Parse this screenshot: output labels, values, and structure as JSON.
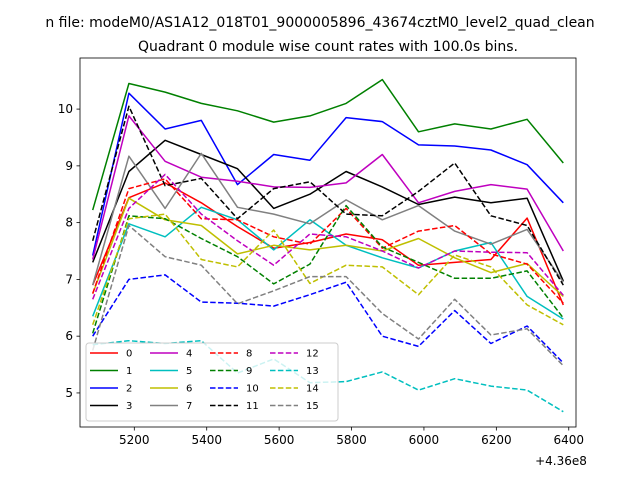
{
  "chart_data": {
    "type": "line",
    "suptitle": "n file: modeM0/AS1A12_018T01_9000005896_43674cztM0_level2_quad_clean",
    "title": "Quadrant 0 module wise count rates with 100.0s bins.",
    "xlabel": "",
    "ylabel": "",
    "x_offset_label": "+4.36e8",
    "xlim": [
      5050,
      6420
    ],
    "ylim": [
      4.4,
      10.9
    ],
    "xticks": [
      5200,
      5400,
      5600,
      5800,
      6000,
      6200,
      6400
    ],
    "yticks": [
      5,
      6,
      7,
      8,
      9,
      10
    ],
    "x": [
      5085,
      5185,
      5285,
      5385,
      5485,
      5585,
      5685,
      5785,
      5885,
      5985,
      6085,
      6185,
      6285,
      6385
    ],
    "legend_position": "lower-left",
    "legend_columns": 4,
    "series": [
      {
        "name": "0",
        "color": "#ff0000",
        "dash": "solid",
        "values": [
          6.9,
          8.44,
          8.7,
          8.35,
          7.93,
          7.55,
          7.65,
          7.8,
          7.7,
          7.25,
          7.3,
          7.35,
          8.08,
          6.55
        ]
      },
      {
        "name": "1",
        "color": "#008000",
        "dash": "solid",
        "values": [
          8.22,
          10.45,
          10.3,
          10.1,
          9.97,
          9.77,
          9.88,
          10.1,
          10.52,
          9.6,
          9.74,
          9.65,
          9.82,
          9.05
        ]
      },
      {
        "name": "2",
        "color": "#0000ff",
        "dash": "solid",
        "values": [
          7.42,
          10.28,
          9.65,
          9.8,
          8.67,
          9.2,
          9.1,
          9.85,
          9.78,
          9.37,
          9.35,
          9.28,
          9.02,
          8.35
        ]
      },
      {
        "name": "3",
        "color": "#000000",
        "dash": "solid",
        "values": [
          7.3,
          8.9,
          9.45,
          9.2,
          8.95,
          8.25,
          8.5,
          8.9,
          8.63,
          8.32,
          8.45,
          8.35,
          8.43,
          6.97
        ]
      },
      {
        "name": "4",
        "color": "#bf00bf",
        "dash": "solid",
        "values": [
          7.35,
          9.88,
          9.08,
          8.8,
          8.73,
          8.63,
          8.62,
          8.7,
          9.2,
          8.35,
          8.55,
          8.67,
          8.59,
          7.5
        ]
      },
      {
        "name": "5",
        "color": "#00bfbf",
        "dash": "solid",
        "values": [
          6.35,
          7.98,
          7.75,
          8.27,
          8.05,
          7.52,
          8.05,
          7.6,
          7.38,
          7.2,
          7.5,
          7.65,
          6.7,
          6.3
        ]
      },
      {
        "name": "6",
        "color": "#bfbf00",
        "dash": "solid",
        "values": [
          6.75,
          8.43,
          8.05,
          7.95,
          7.45,
          7.6,
          7.52,
          7.6,
          7.5,
          7.72,
          7.38,
          7.12,
          7.28,
          6.7
        ]
      },
      {
        "name": "7",
        "color": "#808080",
        "dash": "solid",
        "values": [
          6.9,
          9.17,
          8.25,
          9.22,
          8.27,
          8.15,
          7.98,
          8.4,
          8.05,
          8.3,
          7.85,
          7.62,
          7.88,
          6.95
        ]
      },
      {
        "name": "8",
        "color": "#ff0000",
        "dash": "dashed",
        "values": [
          6.75,
          8.6,
          8.77,
          8.07,
          8.05,
          7.75,
          7.62,
          8.25,
          7.55,
          7.85,
          7.95,
          7.45,
          7.27,
          6.58
        ]
      },
      {
        "name": "9",
        "color": "#008000",
        "dash": "dashed",
        "values": [
          6.05,
          8.12,
          8.07,
          7.72,
          7.4,
          6.92,
          7.27,
          8.3,
          7.57,
          7.3,
          7.02,
          7.02,
          7.15,
          6.32
        ]
      },
      {
        "name": "10",
        "color": "#0000ff",
        "dash": "dashed",
        "values": [
          6.0,
          7.0,
          7.08,
          6.6,
          6.58,
          6.53,
          6.73,
          6.95,
          6.0,
          5.82,
          6.45,
          5.87,
          6.18,
          5.53
        ]
      },
      {
        "name": "11",
        "color": "#000000",
        "dash": "dashed",
        "values": [
          7.68,
          10.05,
          8.65,
          8.78,
          8.07,
          8.6,
          8.72,
          8.15,
          8.12,
          8.55,
          9.05,
          8.12,
          7.95,
          6.9
        ]
      },
      {
        "name": "12",
        "color": "#bf00bf",
        "dash": "dashed",
        "values": [
          6.65,
          8.25,
          8.85,
          8.15,
          7.68,
          7.25,
          7.8,
          7.75,
          7.5,
          7.2,
          7.5,
          7.48,
          7.47,
          6.72
        ]
      },
      {
        "name": "13",
        "color": "#00bfbf",
        "dash": "dashed",
        "values": [
          5.85,
          5.92,
          5.87,
          5.92,
          5.35,
          5.6,
          5.18,
          5.2,
          5.37,
          5.05,
          5.25,
          5.12,
          5.05,
          4.67
        ]
      },
      {
        "name": "14",
        "color": "#bfbf00",
        "dash": "dashed",
        "values": [
          6.2,
          8.07,
          8.15,
          7.35,
          7.22,
          7.87,
          6.93,
          7.25,
          7.22,
          6.73,
          7.43,
          7.22,
          6.55,
          6.2
        ]
      },
      {
        "name": "15",
        "color": "#808080",
        "dash": "dashed",
        "values": [
          5.75,
          7.95,
          7.4,
          7.25,
          6.57,
          6.8,
          7.05,
          7.05,
          6.4,
          5.95,
          6.65,
          6.02,
          6.13,
          5.48
        ]
      }
    ]
  }
}
